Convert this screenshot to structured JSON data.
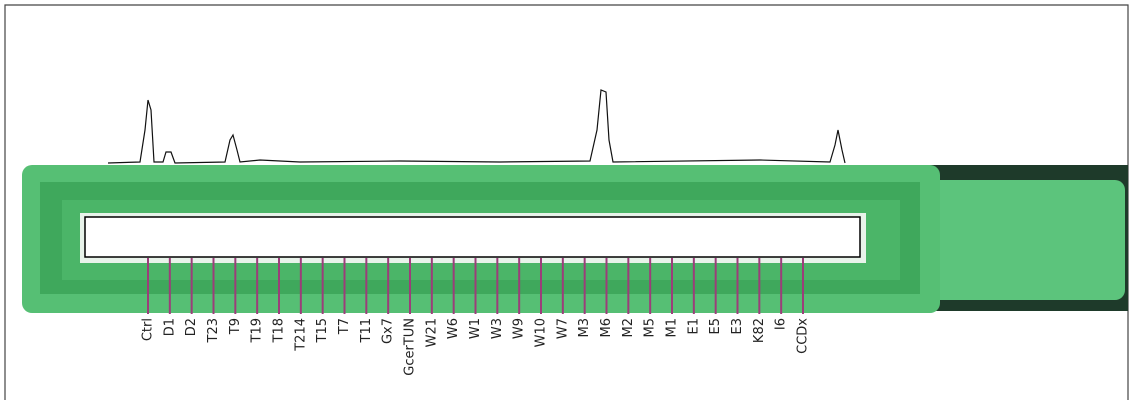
{
  "strip": {
    "labels": [
      "Ctrl",
      "D1",
      "D2",
      "T23",
      "T9",
      "T19",
      "T18",
      "T214",
      "T15",
      "T7",
      "T11",
      "Gx7",
      "GcerTUN",
      "W21",
      "W6",
      "W1",
      "W3",
      "W9",
      "W10",
      "W7",
      "M3",
      "M6",
      "M2",
      "M5",
      "M1",
      "E1",
      "E5",
      "E3",
      "K82",
      "I6",
      "CCDx"
    ]
  }
}
